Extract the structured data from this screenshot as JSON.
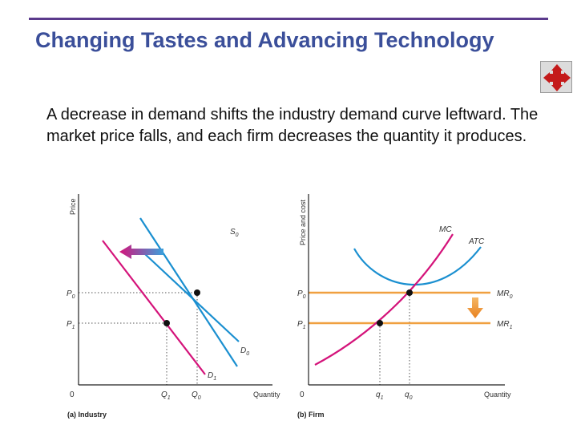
{
  "slide": {
    "title": "Changing Tastes and Advancing Technology",
    "body": "A decrease in demand shifts the industry demand curve leftward. The market price falls, and each firm decreases the quantity it produces."
  },
  "nav": {
    "icon": "four-way-arrow-icon"
  },
  "colors": {
    "title": "#3b4f9a",
    "rule": "#5b3a8c",
    "magenta": "#d4137a",
    "blue": "#1a8fd0",
    "orange": "#f0a040",
    "axis": "#222222"
  },
  "chart_data": [
    {
      "type": "line",
      "panel": "(a) Industry",
      "xlabel": "Quantity",
      "ylabel": "Price",
      "origin": "0",
      "x_ticks": [
        "Q1",
        "Q0"
      ],
      "y_ticks": [
        "P0",
        "P1"
      ],
      "series": [
        {
          "name": "S0",
          "color": "blue",
          "points": [
            [
              0.09,
              0.86
            ],
            [
              0.57,
              0.08
            ]
          ]
        },
        {
          "name": "D0",
          "color": "blue",
          "points": [
            [
              0.15,
              0.57
            ],
            [
              0.58,
              0.26
            ]
          ]
        },
        {
          "name": "D1",
          "color": "magenta",
          "points": [
            [
              0.04,
              0.85
            ],
            [
              0.48,
              0.11
            ]
          ]
        }
      ],
      "equilibria": [
        {
          "q": "Q0",
          "p": "P0",
          "x": 0.43,
          "y": 0.53
        },
        {
          "q": "Q1",
          "p": "P1",
          "x": 0.3,
          "y": 0.36
        }
      ],
      "annotations": [
        "shift-left-arrow"
      ]
    },
    {
      "type": "line",
      "panel": "(b) Firm",
      "xlabel": "Quantity",
      "ylabel": "Price and cost",
      "origin": "0",
      "x_ticks": [
        "q1",
        "q0"
      ],
      "y_ticks": [
        "P0",
        "P1"
      ],
      "series": [
        {
          "name": "MC",
          "color": "magenta"
        },
        {
          "name": "ATC",
          "color": "blue"
        },
        {
          "name": "MR0",
          "color": "orange",
          "level": "P0"
        },
        {
          "name": "MR1",
          "color": "orange",
          "level": "P1"
        }
      ],
      "equilibria": [
        {
          "q": "q0",
          "p": "P0"
        },
        {
          "q": "q1",
          "p": "P1"
        }
      ],
      "annotations": [
        "price-fall-arrow"
      ]
    }
  ]
}
